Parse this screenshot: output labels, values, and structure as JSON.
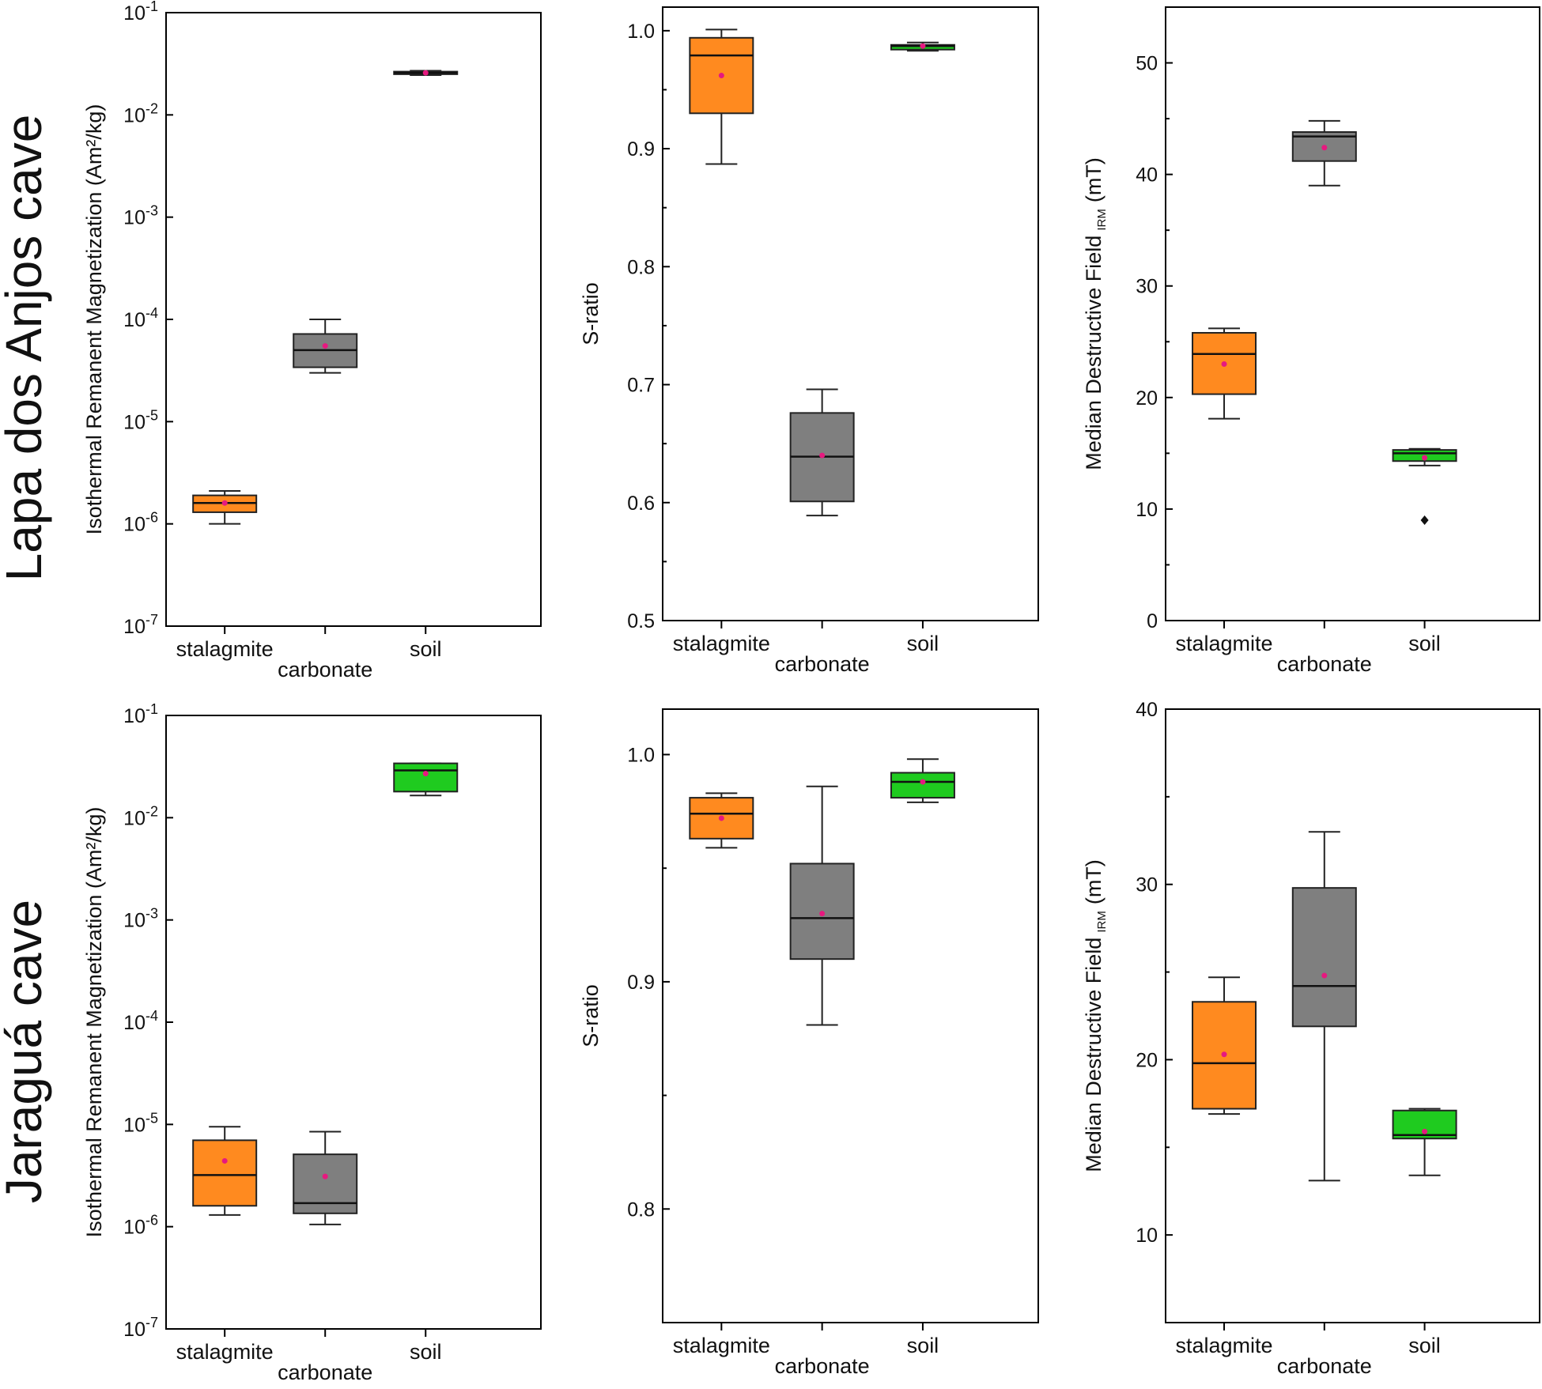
{
  "row_labels": [
    "Lapa dos Anjos cave",
    "Jaraguá cave"
  ],
  "colors": {
    "stalagmite": "#ff8a1f",
    "carbonate": "#7f7f7f",
    "soil": "#1fcb1f",
    "mean": "#e6197f"
  },
  "chart_data": [
    {
      "type": "box",
      "row": "Lapa dos Anjos cave",
      "ylabel": "Isothermal Remanent Magnetization (Am²/kg)",
      "yscale": "log",
      "ylim": [
        1e-07,
        0.1
      ],
      "yticks": [
        {
          "value": 1e-07,
          "base": "10",
          "exp": "-7"
        },
        {
          "value": 1e-06,
          "base": "10",
          "exp": "-6"
        },
        {
          "value": 1e-05,
          "base": "10",
          "exp": "-5"
        },
        {
          "value": 0.0001,
          "base": "10",
          "exp": "-4"
        },
        {
          "value": 0.001,
          "base": "10",
          "exp": "-3"
        },
        {
          "value": 0.01,
          "base": "10",
          "exp": "-2"
        },
        {
          "value": 0.1,
          "base": "10",
          "exp": "-1"
        }
      ],
      "categories": [
        "stalagmite",
        "carbonate",
        "soil"
      ],
      "boxes": [
        {
          "category": "stalagmite",
          "whisker_low": 1e-06,
          "q1": 1.3e-06,
          "median": 1.6e-06,
          "q3": 1.9e-06,
          "whisker_high": 2.1e-06,
          "mean": 1.6e-06,
          "outliers": []
        },
        {
          "category": "carbonate",
          "whisker_low": 3e-05,
          "q1": 3.4e-05,
          "median": 5e-05,
          "q3": 7.2e-05,
          "whisker_high": 0.0001,
          "mean": 5.5e-05,
          "outliers": []
        },
        {
          "category": "soil",
          "whisker_low": 0.0245,
          "q1": 0.025,
          "median": 0.0258,
          "q3": 0.0265,
          "whisker_high": 0.027,
          "mean": 0.0258,
          "outliers": []
        }
      ]
    },
    {
      "type": "box",
      "row": "Lapa dos Anjos cave",
      "ylabel": "S-ratio",
      "yscale": "linear",
      "ylim": [
        0.5,
        1.02
      ],
      "yticks": [
        {
          "value": 0.5,
          "label": "0.5"
        },
        {
          "value": 0.6,
          "label": "0.6"
        },
        {
          "value": 0.7,
          "label": "0.7"
        },
        {
          "value": 0.8,
          "label": "0.8"
        },
        {
          "value": 0.9,
          "label": "0.9"
        },
        {
          "value": 1.0,
          "label": "1.0"
        }
      ],
      "categories": [
        "stalagmite",
        "carbonate",
        "soil"
      ],
      "boxes": [
        {
          "category": "stalagmite",
          "whisker_low": 0.887,
          "q1": 0.93,
          "median": 0.979,
          "q3": 0.994,
          "whisker_high": 1.001,
          "mean": 0.962,
          "outliers": []
        },
        {
          "category": "carbonate",
          "whisker_low": 0.589,
          "q1": 0.601,
          "median": 0.639,
          "q3": 0.676,
          "whisker_high": 0.696,
          "mean": 0.64,
          "outliers": []
        },
        {
          "category": "soil",
          "whisker_low": 0.983,
          "q1": 0.984,
          "median": 0.987,
          "q3": 0.988,
          "whisker_high": 0.99,
          "mean": 0.987,
          "outliers": []
        }
      ]
    },
    {
      "type": "box",
      "row": "Lapa dos Anjos cave",
      "ylabel": "Median Destructive Field",
      "ylabel_sub": "IRM",
      "ylabel_unit": "(mT)",
      "yscale": "linear",
      "ylim": [
        0,
        55
      ],
      "yticks": [
        {
          "value": 0,
          "label": "0"
        },
        {
          "value": 10,
          "label": "10"
        },
        {
          "value": 20,
          "label": "20"
        },
        {
          "value": 30,
          "label": "30"
        },
        {
          "value": 40,
          "label": "40"
        },
        {
          "value": 50,
          "label": "50"
        }
      ],
      "categories": [
        "stalagmite",
        "carbonate",
        "soil"
      ],
      "boxes": [
        {
          "category": "stalagmite",
          "whisker_low": 18.1,
          "q1": 20.3,
          "median": 23.9,
          "q3": 25.8,
          "whisker_high": 26.2,
          "mean": 23.0,
          "outliers": []
        },
        {
          "category": "carbonate",
          "whisker_low": 39.0,
          "q1": 41.2,
          "median": 43.4,
          "q3": 43.8,
          "whisker_high": 44.8,
          "mean": 42.4,
          "outliers": []
        },
        {
          "category": "soil",
          "whisker_low": 13.9,
          "q1": 14.3,
          "median": 15.0,
          "q3": 15.3,
          "whisker_high": 15.4,
          "mean": 14.6,
          "outliers": [
            9.0
          ]
        }
      ]
    },
    {
      "type": "box",
      "row": "Jaraguá cave",
      "ylabel": "Isothermal Remanent Magnetization (Am²/kg)",
      "yscale": "log",
      "ylim": [
        1e-07,
        0.1
      ],
      "yticks": [
        {
          "value": 1e-07,
          "base": "10",
          "exp": "-7"
        },
        {
          "value": 1e-06,
          "base": "10",
          "exp": "-6"
        },
        {
          "value": 1e-05,
          "base": "10",
          "exp": "-5"
        },
        {
          "value": 0.0001,
          "base": "10",
          "exp": "-4"
        },
        {
          "value": 0.001,
          "base": "10",
          "exp": "-3"
        },
        {
          "value": 0.01,
          "base": "10",
          "exp": "-2"
        },
        {
          "value": 0.1,
          "base": "10",
          "exp": "-1"
        }
      ],
      "categories": [
        "stalagmite",
        "carbonate",
        "soil"
      ],
      "boxes": [
        {
          "category": "stalagmite",
          "whisker_low": 1.3e-06,
          "q1": 1.6e-06,
          "median": 3.2e-06,
          "q3": 7e-06,
          "whisker_high": 9.5e-06,
          "mean": 4.4e-06,
          "outliers": []
        },
        {
          "category": "carbonate",
          "whisker_low": 1.05e-06,
          "q1": 1.35e-06,
          "median": 1.7e-06,
          "q3": 5.1e-06,
          "whisker_high": 8.5e-06,
          "mean": 3.1e-06,
          "outliers": []
        },
        {
          "category": "soil",
          "whisker_low": 0.0165,
          "q1": 0.018,
          "median": 0.029,
          "q3": 0.034,
          "whisker_high": 0.034,
          "mean": 0.027,
          "outliers": []
        }
      ]
    },
    {
      "type": "box",
      "row": "Jaraguá cave",
      "ylabel": "S-ratio",
      "yscale": "linear",
      "ylim": [
        0.75,
        1.02
      ],
      "yticks": [
        {
          "value": 0.8,
          "label": "0.8"
        },
        {
          "value": 0.9,
          "label": "0.9"
        },
        {
          "value": 1.0,
          "label": "1.0"
        }
      ],
      "categories": [
        "stalagmite",
        "carbonate",
        "soil"
      ],
      "boxes": [
        {
          "category": "stalagmite",
          "whisker_low": 0.959,
          "q1": 0.963,
          "median": 0.974,
          "q3": 0.981,
          "whisker_high": 0.983,
          "mean": 0.972,
          "outliers": []
        },
        {
          "category": "carbonate",
          "whisker_low": 0.881,
          "q1": 0.91,
          "median": 0.928,
          "q3": 0.952,
          "whisker_high": 0.986,
          "mean": 0.93,
          "outliers": []
        },
        {
          "category": "soil",
          "whisker_low": 0.979,
          "q1": 0.981,
          "median": 0.988,
          "q3": 0.992,
          "whisker_high": 0.998,
          "mean": 0.988,
          "outliers": []
        }
      ]
    },
    {
      "type": "box",
      "row": "Jaraguá cave",
      "ylabel": "Median Destructive Field",
      "ylabel_sub": "IRM",
      "ylabel_unit": "(mT)",
      "yscale": "linear",
      "ylim": [
        5,
        40
      ],
      "yticks": [
        {
          "value": 10,
          "label": "10"
        },
        {
          "value": 20,
          "label": "20"
        },
        {
          "value": 30,
          "label": "30"
        },
        {
          "value": 40,
          "label": "40"
        }
      ],
      "categories": [
        "stalagmite",
        "carbonate",
        "soil"
      ],
      "boxes": [
        {
          "category": "stalagmite",
          "whisker_low": 16.9,
          "q1": 17.2,
          "median": 19.8,
          "q3": 23.3,
          "whisker_high": 24.7,
          "mean": 20.3,
          "outliers": []
        },
        {
          "category": "carbonate",
          "whisker_low": 13.1,
          "q1": 21.9,
          "median": 24.2,
          "q3": 29.8,
          "whisker_high": 33.0,
          "mean": 24.8,
          "outliers": []
        },
        {
          "category": "soil",
          "whisker_low": 13.4,
          "q1": 15.5,
          "median": 15.7,
          "q3": 17.1,
          "whisker_high": 17.2,
          "mean": 15.9,
          "outliers": []
        }
      ]
    }
  ]
}
